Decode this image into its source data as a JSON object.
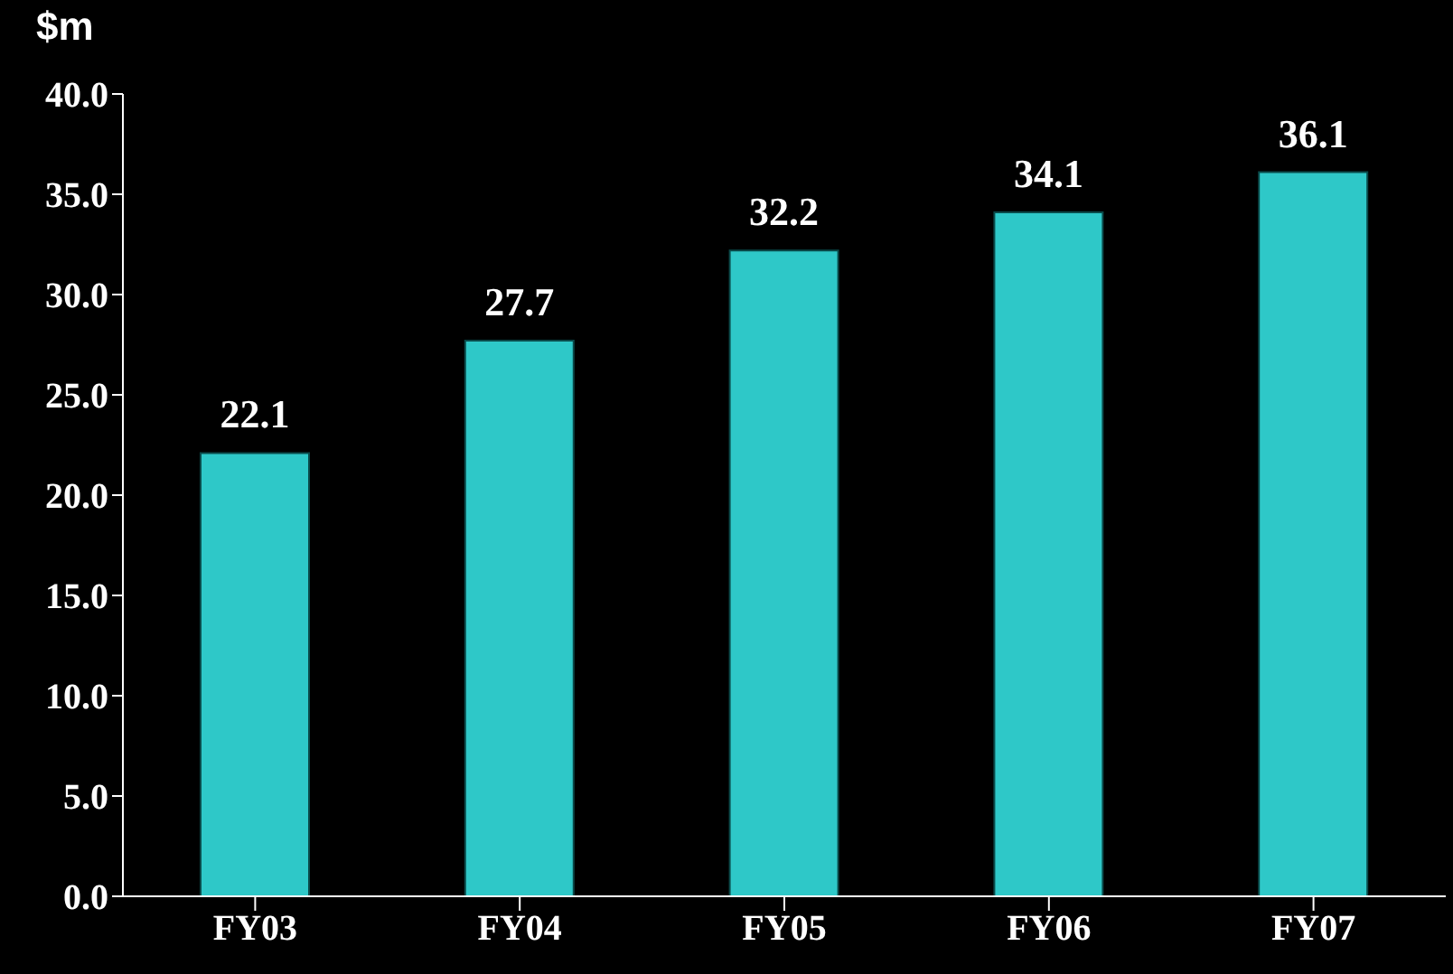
{
  "chart_data": {
    "type": "bar",
    "ylabel": "$m",
    "categories": [
      "FY03",
      "FY04",
      "FY05",
      "FY06",
      "FY07"
    ],
    "values": [
      22.1,
      27.7,
      32.2,
      34.1,
      36.1
    ],
    "color": "#2ec8c8",
    "ylim": [
      0,
      40
    ],
    "yticks": [
      {
        "value": 0,
        "label": "0.0"
      },
      {
        "value": 5,
        "label": "5.0"
      },
      {
        "value": 10,
        "label": "10.0"
      },
      {
        "value": 15,
        "label": "15.0"
      },
      {
        "value": 20,
        "label": "20.0"
      },
      {
        "value": 25,
        "label": "25.0"
      },
      {
        "value": 30,
        "label": "30.0"
      },
      {
        "value": 35,
        "label": "35.0"
      },
      {
        "value": 40,
        "label": "40.0"
      }
    ],
    "data_labels": true,
    "grid": false,
    "legend": false
  }
}
